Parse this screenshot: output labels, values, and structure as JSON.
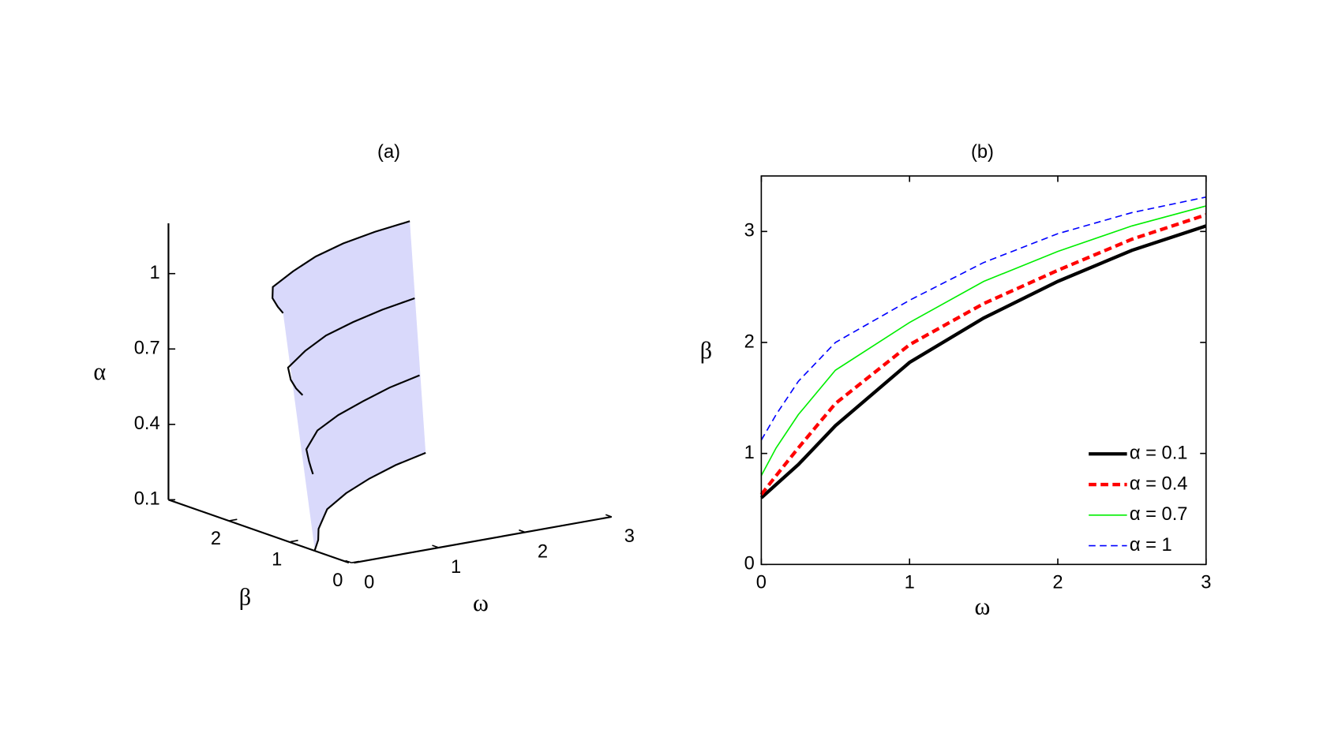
{
  "chart_data": [
    {
      "type": "line3d",
      "title": "(a)",
      "xlabel": "ω",
      "ylabel": "β",
      "zlabel": "α",
      "xlim": [
        0,
        3
      ],
      "xticks": [
        0,
        1,
        2,
        3
      ],
      "ylim": [
        0,
        3
      ],
      "yticks": [
        0,
        1,
        2
      ],
      "zlim": [
        0.1,
        1.2
      ],
      "zticks": [
        0.1,
        0.4,
        0.7,
        1
      ],
      "surface_color": "#d9d9fb",
      "x": [
        0,
        0.1,
        0.25,
        0.5,
        1,
        1.5,
        2,
        2.5,
        3
      ],
      "series": [
        {
          "z": 0.1,
          "color": "#000000",
          "values": [
            0.6,
            0.72,
            0.9,
            1.25,
            1.82,
            2.22,
            2.55,
            2.83,
            3.05
          ]
        },
        {
          "z": 0.4,
          "color": "#000000",
          "values": [
            0.63,
            0.8,
            1.05,
            1.45,
            1.98,
            2.35,
            2.65,
            2.93,
            3.15
          ]
        },
        {
          "z": 0.7,
          "color": "#000000",
          "values": [
            0.8,
            1.05,
            1.35,
            1.75,
            2.18,
            2.55,
            2.82,
            3.05,
            3.23
          ]
        },
        {
          "z": 1,
          "color": "#000000",
          "values": [
            1.12,
            1.35,
            1.65,
            2.0,
            2.38,
            2.72,
            2.98,
            3.17,
            3.31
          ]
        }
      ]
    },
    {
      "type": "line",
      "title": "(b)",
      "xlabel": "ω",
      "ylabel": "β",
      "xlim": [
        0,
        3
      ],
      "xticks": [
        0,
        1,
        2,
        3
      ],
      "ylim": [
        0,
        3.5
      ],
      "yticks": [
        0,
        1,
        2,
        3
      ],
      "legend": "lower right",
      "x": [
        0,
        0.1,
        0.25,
        0.5,
        1,
        1.5,
        2,
        2.5,
        3
      ],
      "series": [
        {
          "name": "α = 0.1",
          "color": "#000000",
          "linewidth": 4,
          "dashed": false,
          "values": [
            0.6,
            0.72,
            0.9,
            1.25,
            1.82,
            2.22,
            2.55,
            2.83,
            3.05
          ]
        },
        {
          "name": "α = 0.4",
          "color": "#ff0000",
          "linewidth": 4,
          "dashed": true,
          "values": [
            0.63,
            0.8,
            1.05,
            1.45,
            1.98,
            2.35,
            2.65,
            2.93,
            3.15
          ]
        },
        {
          "name": "α = 0.7",
          "color": "#00ee00",
          "linewidth": 1.5,
          "dashed": false,
          "values": [
            0.8,
            1.05,
            1.35,
            1.75,
            2.18,
            2.55,
            2.82,
            3.05,
            3.23
          ]
        },
        {
          "name": "α = 1",
          "color": "#0000ff",
          "linewidth": 1.5,
          "dashed": true,
          "values": [
            1.12,
            1.35,
            1.65,
            2.0,
            2.38,
            2.72,
            2.98,
            3.17,
            3.31
          ]
        }
      ]
    }
  ]
}
